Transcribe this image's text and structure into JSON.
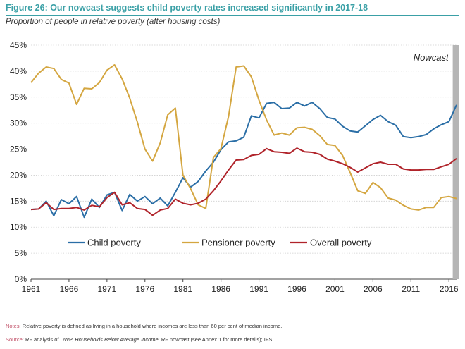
{
  "figure": {
    "title": "Figure 26:  Our nowcast suggests child poverty rates increased significantly in 2017-18",
    "subtitle": "Proportion of people in relative poverty (after housing costs)"
  },
  "notes": {
    "notes_label": "Notes:",
    "notes_text": "Relative poverty is defined as living in a household where incomes are less than 60 per cent of median income.",
    "source_label": "Source:",
    "source_text_1": "RF analysis of DWP, ",
    "source_text_italic": "Households Below Average Income",
    "source_text_2": "; RF nowcast (see Annex 1 for more details); IFS"
  },
  "colors": {
    "child": "#2a6ea6",
    "pensioner": "#d4a640",
    "overall": "#b0232a",
    "nowcast_band": "#b5b5b5",
    "grid": "#cfcfcf",
    "title": "#3aa0a6"
  },
  "chart_data": {
    "type": "line",
    "x": [
      1961,
      1962,
      1963,
      1964,
      1965,
      1966,
      1967,
      1968,
      1969,
      1970,
      1971,
      1972,
      1973,
      1974,
      1975,
      1976,
      1977,
      1978,
      1979,
      1980,
      1981,
      1982,
      1983,
      1984,
      1985,
      1986,
      1987,
      1988,
      1989,
      1990,
      1991,
      1992,
      1993,
      1994,
      1995,
      1996,
      1997,
      1998,
      1999,
      2000,
      2001,
      2002,
      2003,
      2004,
      2005,
      2006,
      2007,
      2008,
      2009,
      2010,
      2011,
      2012,
      2013,
      2014,
      2015,
      2016,
      2017
    ],
    "series": [
      {
        "name": "Child poverty",
        "color_key": "child",
        "values": [
          13.4,
          13.5,
          15.0,
          12.2,
          15.3,
          14.5,
          15.9,
          11.9,
          15.4,
          13.8,
          16.2,
          16.7,
          13.2,
          16.3,
          15.0,
          15.9,
          14.5,
          15.6,
          14.1,
          16.7,
          19.5,
          17.7,
          18.8,
          20.8,
          22.5,
          24.9,
          26.4,
          26.6,
          27.3,
          31.4,
          31.0,
          33.8,
          34.0,
          32.8,
          32.9,
          34.0,
          33.3,
          34.0,
          32.8,
          31.1,
          30.8,
          29.4,
          28.5,
          28.3,
          29.5,
          30.7,
          31.5,
          30.3,
          29.6,
          27.4,
          27.2,
          27.4,
          27.8,
          28.9,
          29.7,
          30.3,
          33.5
        ]
      },
      {
        "name": "Pensioner poverty",
        "color_key": "pensioner",
        "values": [
          37.8,
          39.6,
          40.8,
          40.5,
          38.4,
          37.7,
          33.6,
          36.7,
          36.6,
          37.8,
          40.2,
          41.2,
          38.5,
          34.8,
          30.2,
          25.0,
          22.7,
          26.2,
          31.6,
          32.9,
          20.0,
          17.4,
          14.3,
          13.6,
          23.4,
          25.1,
          31.3,
          40.8,
          41.0,
          38.9,
          34.4,
          30.6,
          27.7,
          28.1,
          27.7,
          29.1,
          29.2,
          28.8,
          27.6,
          25.9,
          25.7,
          23.8,
          20.5,
          17.0,
          16.5,
          18.6,
          17.6,
          15.6,
          15.2,
          14.2,
          13.5,
          13.3,
          13.8,
          13.8,
          15.7,
          15.9,
          15.5
        ]
      },
      {
        "name": "Overall poverty",
        "color_key": "overall",
        "values": [
          13.4,
          13.5,
          14.7,
          13.4,
          13.6,
          13.6,
          13.8,
          13.3,
          14.2,
          13.9,
          15.7,
          16.7,
          14.3,
          14.7,
          13.6,
          13.4,
          12.3,
          13.3,
          13.6,
          15.4,
          14.6,
          14.3,
          14.6,
          15.4,
          17.0,
          18.9,
          21.0,
          22.9,
          23.0,
          23.8,
          24.0,
          25.1,
          24.5,
          24.4,
          24.2,
          25.2,
          24.5,
          24.4,
          24.0,
          23.1,
          22.7,
          22.2,
          21.5,
          20.6,
          21.4,
          22.2,
          22.5,
          22.1,
          22.1,
          21.2,
          21.0,
          21.0,
          21.1,
          21.1,
          21.6,
          22.1,
          23.2
        ]
      }
    ],
    "ylim": [
      0,
      45
    ],
    "y_ticks": [
      "0%",
      "5%",
      "10%",
      "15%",
      "20%",
      "25%",
      "30%",
      "35%",
      "40%",
      "45%"
    ],
    "x_ticks": [
      "1961",
      "1966",
      "1971",
      "1976",
      "1981",
      "1986",
      "1991",
      "1996",
      "2001",
      "2006",
      "2011",
      "2016"
    ],
    "grid": true,
    "legend_placement": "inside-bottom",
    "annotation": "Nowcast",
    "nowcast_year": 2017
  }
}
